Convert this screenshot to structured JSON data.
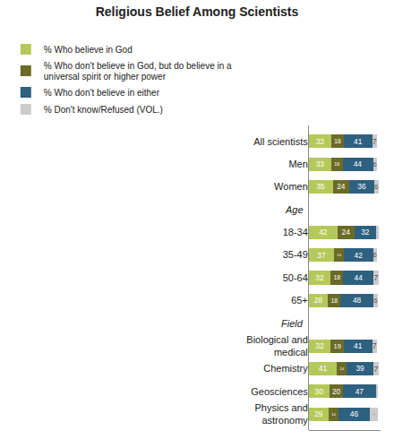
{
  "chart_data": {
    "type": "bar",
    "orientation": "horizontal",
    "stacked": true,
    "title": "Religious Belief Among Scientists",
    "categories": [
      "All scientists",
      "Men",
      "Women",
      "18-34",
      "35-49",
      "50-64",
      "65+",
      "Biological and\nmedical",
      "Chemistry",
      "Geosciences",
      "Physics and\nastronomy"
    ],
    "series": [
      {
        "name": "% Who believe in God",
        "color": "#b5c95a",
        "values": [
          33,
          33,
          35,
          42,
          37,
          32,
          28,
          32,
          41,
          30,
          29
        ],
        "value_labels": [
          "33",
          "33",
          "35",
          "42",
          "37",
          "32",
          "28",
          "32",
          "41",
          "30",
          "29"
        ]
      },
      {
        "name": "% Who don't believe in God, but do believe in a universal spirit or higher power",
        "color": "#6b6b28",
        "values": [
          18,
          16,
          24,
          24,
          14,
          18,
          18,
          19,
          14,
          20,
          14
        ],
        "value_labels": [
          "18",
          "16",
          "24",
          "24",
          "14",
          "18",
          "18",
          "19",
          "14",
          "20",
          "14"
        ]
      },
      {
        "name": "% Who don't believe in either",
        "color": "#2e6080",
        "values": [
          41,
          44,
          36,
          32,
          42,
          44,
          48,
          41,
          39,
          47,
          46
        ],
        "value_labels": [
          "41",
          "44",
          "36",
          "32",
          "42",
          "44",
          "48",
          "41",
          "39",
          "47",
          "46"
        ]
      },
      {
        "name": "% Don't know/Refused (VOL.)",
        "color": "#cccccc",
        "values": [
          7,
          6,
          6,
          3,
          6,
          7,
          6,
          7,
          7,
          3,
          11
        ],
        "value_labels": [
          "7",
          "6",
          "6",
          null,
          "6",
          "7",
          "6",
          "7",
          "7",
          null,
          "11"
        ]
      }
    ],
    "annotations": [
      {
        "text": "Age",
        "category": "18-34"
      },
      {
        "text": "Field",
        "category": "Biological and\nmedical"
      }
    ],
    "xlim": [
      0,
      104
    ],
    "grid": false,
    "legend": "top",
    "data_labels": true,
    "tick_labels": "y"
  }
}
